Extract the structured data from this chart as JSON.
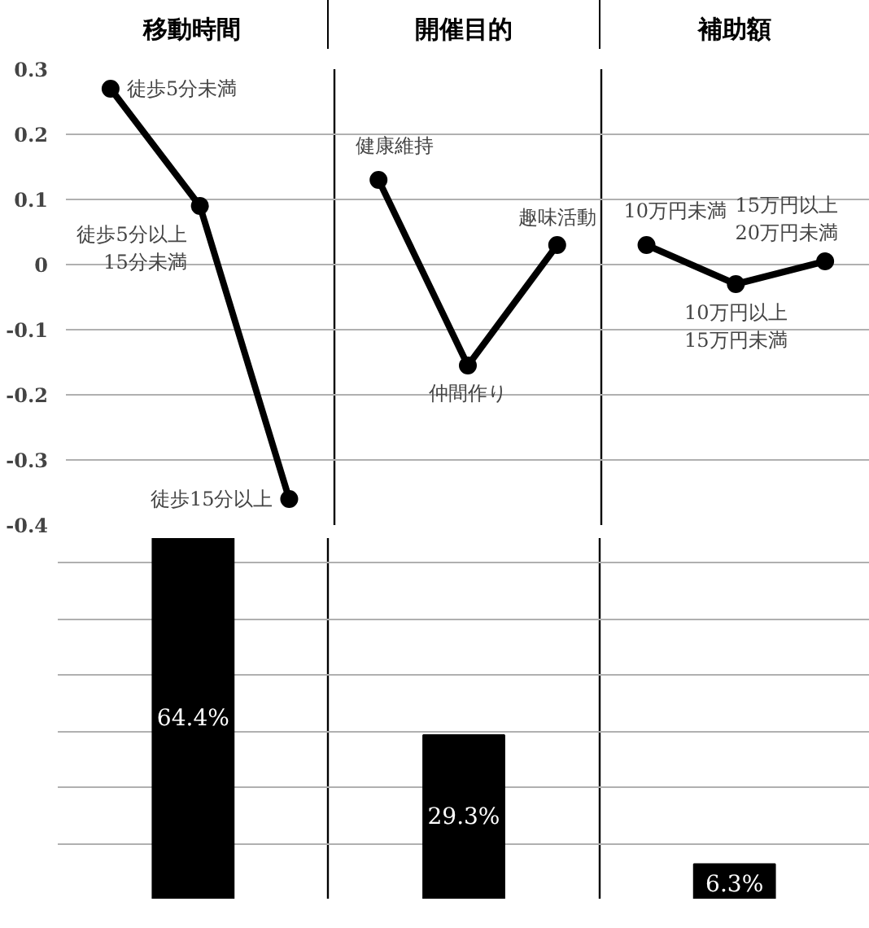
{
  "chart_data": [
    {
      "type": "line",
      "categories": [
        null,
        null,
        null,
        null,
        null,
        null,
        null,
        null,
        null
      ],
      "series": [
        {
          "color": "#000000",
          "values": [
            0.27,
            0.09,
            -0.36,
            null,
            null,
            null,
            null,
            null,
            null
          ]
        },
        {
          "color": "#000000",
          "values": [
            null,
            null,
            null,
            0.13,
            -0.155,
            0.03,
            null,
            null,
            null
          ]
        },
        {
          "color": "#000000",
          "values": [
            null,
            null,
            null,
            null,
            null,
            null,
            0.03,
            -0.03,
            0.005
          ]
        }
      ],
      "annotations": [
        "移動時間",
        "開催目的",
        "補助額",
        "徒歩5分未満",
        "徒歩5分以上15分未満",
        "徒歩15分以上",
        "健康維持",
        "仲間作り",
        "趣味活動",
        "10万円未満",
        "10万円以上15万円未満",
        "15万円以上20万円未満"
      ],
      "marker": "circle",
      "ylim": [
        -0.4,
        0.3
      ],
      "yticks": [
        0.3,
        0.2,
        0.1,
        0,
        -0.1,
        -0.2,
        -0.3,
        -0.4
      ],
      "grid": true,
      "tick_labels": "y"
    },
    {
      "type": "bar",
      "categories": [
        null,
        null,
        null
      ],
      "values": [
        64.4,
        29.3,
        6.3
      ],
      "value_labels": [
        "64.4%",
        "29.3%",
        "6.3%"
      ],
      "color": "#000000",
      "grid": true,
      "tick_labels": false
    }
  ]
}
